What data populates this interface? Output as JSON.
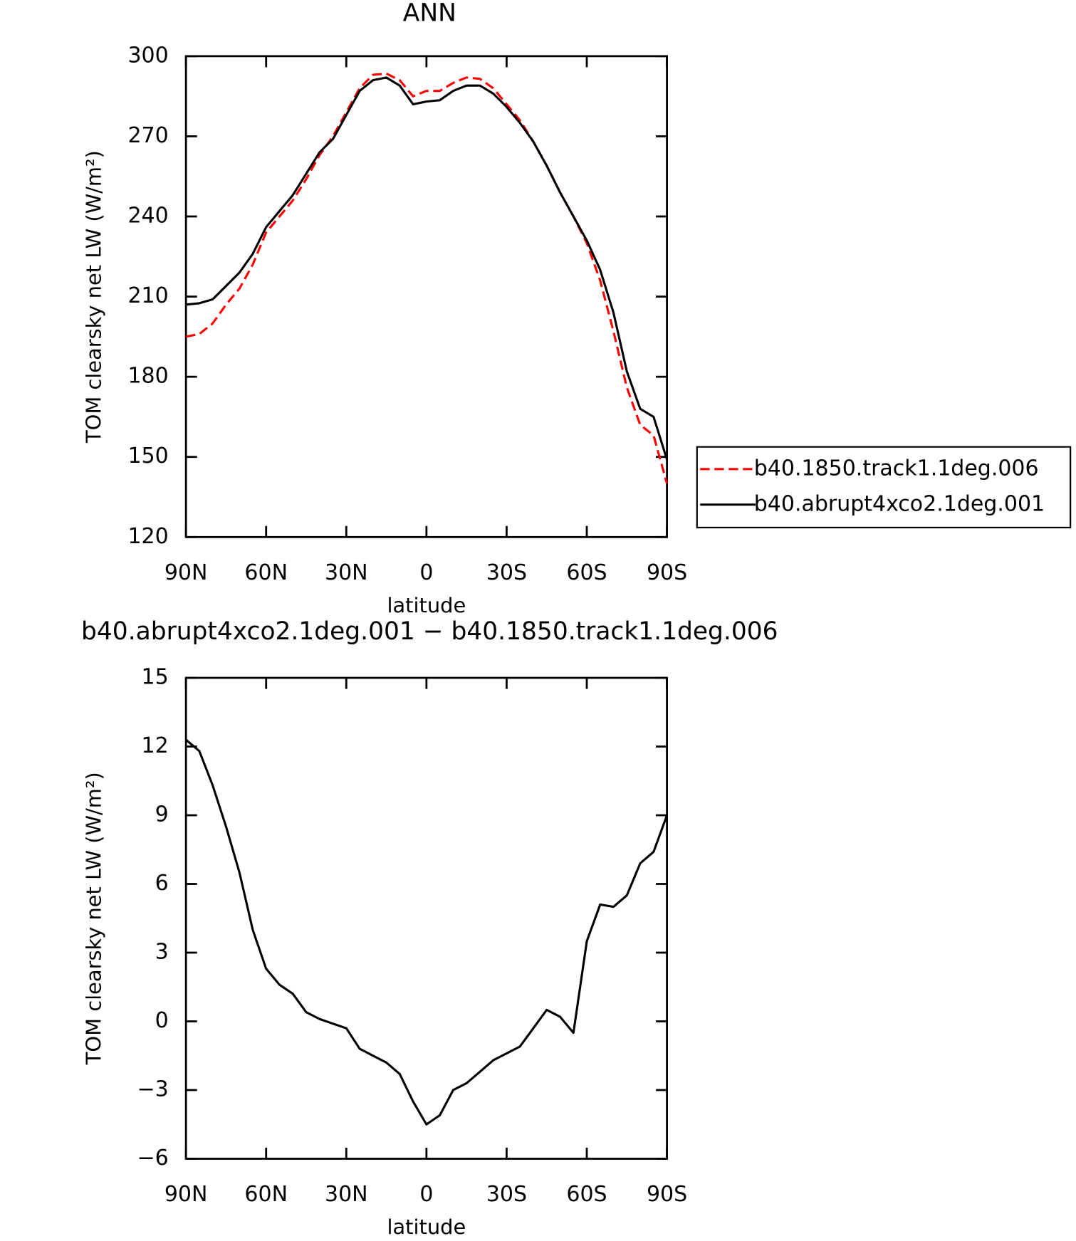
{
  "chart_data": [
    {
      "type": "line",
      "title": "ANN",
      "xlabel": "latitude",
      "ylabel": "TOM clearsky net LW (W/m²)",
      "x": [
        90,
        85,
        80,
        75,
        70,
        65,
        60,
        55,
        50,
        45,
        40,
        35,
        30,
        25,
        20,
        15,
        10,
        5,
        0,
        -5,
        -10,
        -15,
        -20,
        -25,
        -30,
        -35,
        -40,
        -45,
        -50,
        -55,
        -60,
        -65,
        -70,
        -75,
        -80,
        -85,
        -90
      ],
      "series": [
        {
          "name": "b40.1850.track1.1deg.006",
          "color": "#ff0000",
          "dashed": true,
          "values": [
            195,
            196,
            200,
            207,
            213,
            222,
            234,
            240,
            246,
            254,
            263,
            270,
            279,
            288,
            293,
            293.5,
            291,
            285,
            287,
            287,
            290,
            292,
            291.5,
            288,
            282,
            276,
            268,
            259,
            249,
            240,
            230,
            216,
            197,
            176,
            162,
            158,
            140
          ]
        },
        {
          "name": "b40.abrupt4xco2.1deg.001",
          "color": "#000000",
          "dashed": false,
          "values": [
            207,
            207.5,
            209,
            214,
            219,
            226,
            236,
            242,
            248,
            256,
            264,
            269,
            278,
            287,
            291,
            292,
            289,
            282,
            283,
            283.5,
            287,
            289,
            289,
            286,
            281,
            275,
            268,
            259,
            249,
            240,
            231,
            220,
            204,
            182,
            168,
            165,
            149
          ]
        }
      ],
      "xlim": [
        90,
        -90
      ],
      "xticks": [
        {
          "value": 90,
          "label": "90N"
        },
        {
          "value": 60,
          "label": "60N"
        },
        {
          "value": 30,
          "label": "30N"
        },
        0,
        {
          "value": -30,
          "label": "30S"
        },
        {
          "value": -60,
          "label": "60S"
        },
        {
          "value": -90,
          "label": "90S"
        }
      ],
      "ylim": [
        120,
        300
      ],
      "yticks": [
        120,
        150,
        180,
        210,
        240,
        270,
        300
      ],
      "legend": "right"
    },
    {
      "type": "line",
      "title": "b40.abrupt4xco2.1deg.001 − b40.1850.track1.1deg.006",
      "xlabel": "latitude",
      "ylabel": "TOM clearsky net LW (W/m²)",
      "x": [
        90,
        85,
        80,
        75,
        70,
        65,
        60,
        55,
        50,
        45,
        40,
        35,
        30,
        25,
        20,
        15,
        10,
        5,
        0,
        -5,
        -10,
        -15,
        -20,
        -25,
        -30,
        -35,
        -40,
        -45,
        -50,
        -55,
        -60,
        -65,
        -70,
        -75,
        -80,
        -85,
        -90
      ],
      "series": [
        {
          "color": "#000000",
          "dashed": false,
          "values": [
            12.3,
            11.8,
            10.3,
            8.5,
            6.5,
            4,
            2.3,
            1.6,
            1.2,
            0.4,
            0.1,
            -0.1,
            -0.3,
            -1.2,
            -1.5,
            -1.8,
            -2.3,
            -3.5,
            -4.5,
            -4.1,
            -3,
            -2.7,
            -2.2,
            -1.7,
            -1.4,
            -1.1,
            -0.3,
            0.5,
            0.2,
            -0.5,
            3.5,
            5.1,
            5,
            5.5,
            6.9,
            7.4,
            9
          ]
        }
      ],
      "xlim": [
        90,
        -90
      ],
      "xticks": [
        {
          "value": 90,
          "label": "90N"
        },
        {
          "value": 60,
          "label": "60N"
        },
        {
          "value": 30,
          "label": "30N"
        },
        0,
        {
          "value": -30,
          "label": "30S"
        },
        {
          "value": -60,
          "label": "60S"
        },
        {
          "value": -90,
          "label": "90S"
        }
      ],
      "ylim": [
        -6,
        15
      ],
      "yticks": [
        {
          "value": -6,
          "label": "−6"
        },
        {
          "value": -3,
          "label": "−3"
        },
        0,
        3,
        6,
        9,
        12,
        15
      ]
    }
  ]
}
